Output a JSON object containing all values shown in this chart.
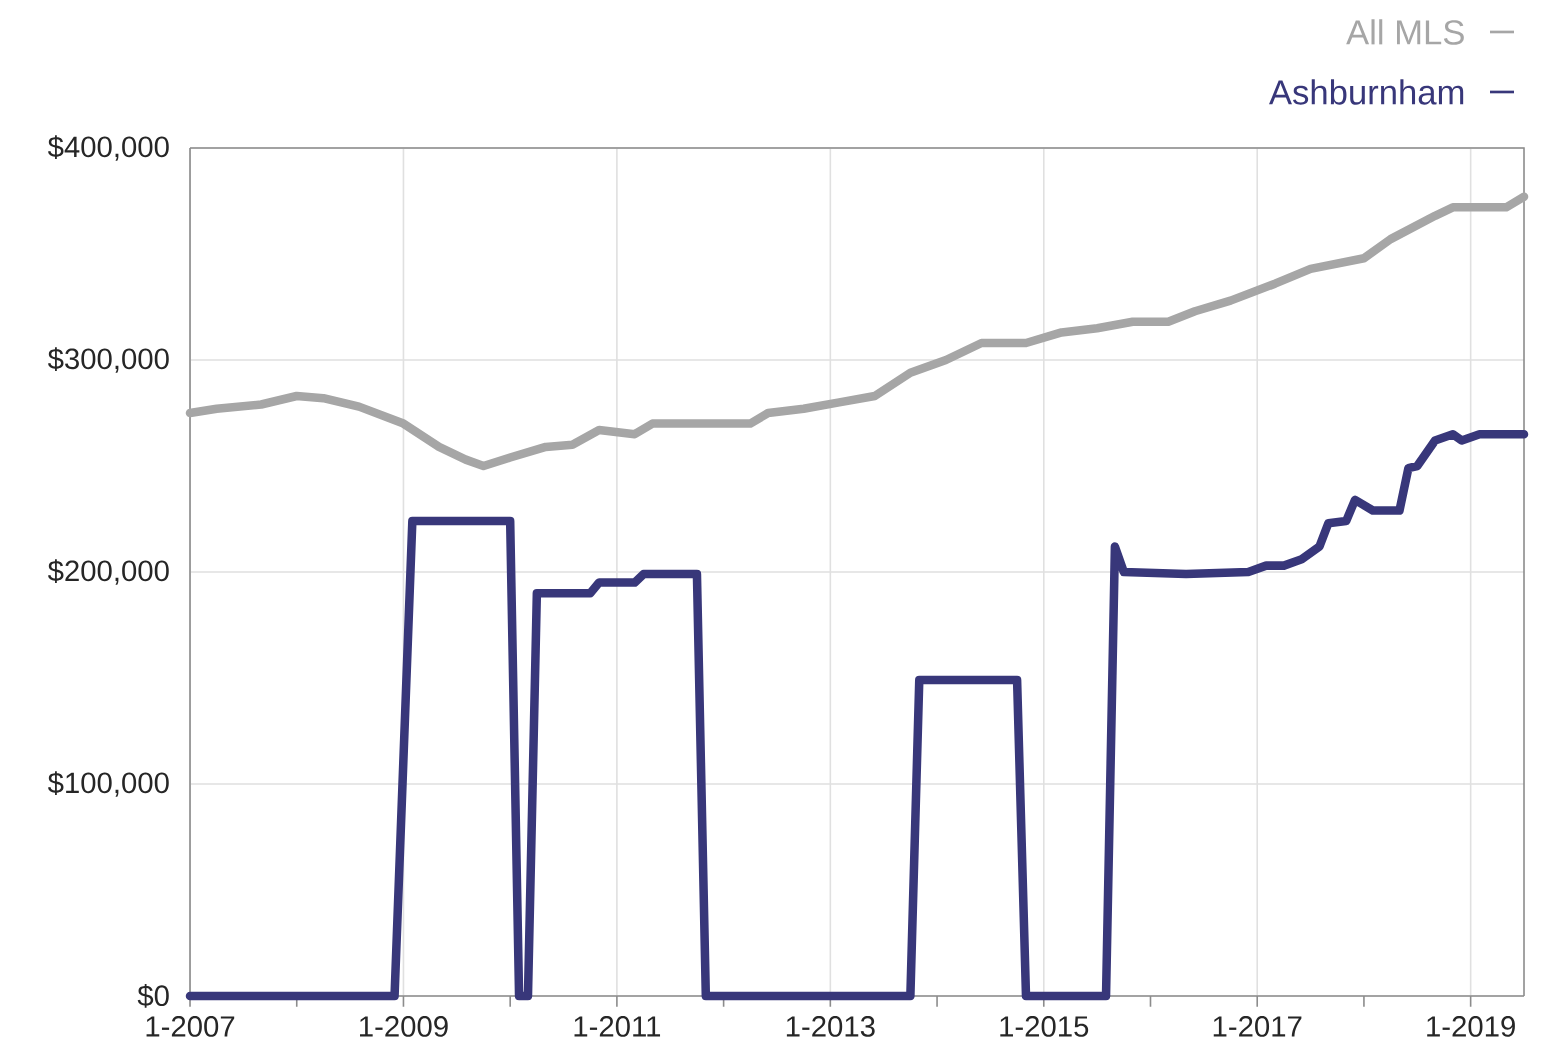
{
  "chart_data": {
    "type": "line",
    "legend": "top right",
    "grid": true,
    "line_style": "solid",
    "marker": "none",
    "xlim": [
      "2007-01",
      "2019-07"
    ],
    "xticks": [
      {
        "value": "2007-01",
        "label": "1-2007"
      },
      {
        "value": "2008-01",
        "label": null
      },
      {
        "value": "2009-01",
        "label": "1-2009"
      },
      {
        "value": "2010-01",
        "label": null
      },
      {
        "value": "2011-01",
        "label": "1-2011"
      },
      {
        "value": "2012-01",
        "label": null
      },
      {
        "value": "2013-01",
        "label": "1-2013"
      },
      {
        "value": "2014-01",
        "label": null
      },
      {
        "value": "2015-01",
        "label": "1-2015"
      },
      {
        "value": "2016-01",
        "label": null
      },
      {
        "value": "2017-01",
        "label": "1-2017"
      },
      {
        "value": "2018-01",
        "label": null
      },
      {
        "value": "2019-01",
        "label": "1-2019"
      }
    ],
    "ylim": [
      0,
      400000
    ],
    "yticks": [
      {
        "value": 0,
        "label": "$0"
      },
      {
        "value": 100000,
        "label": "$100,000"
      },
      {
        "value": 200000,
        "label": "$200,000"
      },
      {
        "value": 300000,
        "label": "$300,000"
      },
      {
        "value": 400000,
        "label": "$400,000"
      }
    ],
    "series": [
      {
        "name": "All MLS",
        "color": "#a6a6a6",
        "x": [
          "2007-01",
          "2007-04",
          "2007-09",
          "2008-01",
          "2008-04",
          "2008-08",
          "2009-01",
          "2009-05",
          "2009-08",
          "2009-10",
          "2010-01",
          "2010-05",
          "2010-08",
          "2010-11",
          "2011-03",
          "2011-05",
          "2012-04",
          "2012-06",
          "2012-10",
          "2013-02",
          "2013-06",
          "2013-10",
          "2014-02",
          "2014-06",
          "2014-11",
          "2015-03",
          "2015-07",
          "2015-11",
          "2016-03",
          "2016-06",
          "2016-10",
          "2017-03",
          "2017-07",
          "2018-01",
          "2018-04",
          "2018-09",
          "2018-11",
          "2019-05",
          "2019-07"
        ],
        "values": [
          275000,
          277000,
          279000,
          283000,
          282000,
          278000,
          270000,
          259000,
          253000,
          250000,
          254000,
          259000,
          260000,
          267000,
          265000,
          270000,
          270000,
          275000,
          277000,
          280000,
          283000,
          294000,
          300000,
          308000,
          308000,
          313000,
          315000,
          318000,
          318000,
          323000,
          328000,
          336000,
          343000,
          348000,
          357000,
          368000,
          372000,
          372000,
          377000
        ]
      },
      {
        "name": "Ashburnham",
        "color": "#38377a",
        "x": [
          "2007-01",
          "2008-12",
          "2009-02",
          "2010-01",
          "2010-02",
          "2010-03",
          "2010-04",
          "2010-10",
          "2010-11",
          "2011-03",
          "2011-04",
          "2011-10",
          "2011-11",
          "2013-10",
          "2013-11",
          "2014-10",
          "2014-11",
          "2015-08",
          "2015-09",
          "2015-10",
          "2016-05",
          "2016-12",
          "2017-02",
          "2017-04",
          "2017-06",
          "2017-08",
          "2017-09",
          "2017-11",
          "2017-12",
          "2018-02",
          "2018-05",
          "2018-06",
          "2018-07",
          "2018-09",
          "2018-11",
          "2018-12",
          "2019-02",
          "2019-07"
        ],
        "values": [
          0,
          0,
          224000,
          224000,
          0,
          0,
          190000,
          190000,
          195000,
          195000,
          199000,
          199000,
          0,
          0,
          149000,
          149000,
          0,
          0,
          212000,
          200000,
          199000,
          200000,
          203000,
          203000,
          206000,
          212000,
          223000,
          224000,
          234000,
          229000,
          229000,
          249000,
          250000,
          262000,
          265000,
          262000,
          265000,
          265000
        ]
      }
    ]
  }
}
